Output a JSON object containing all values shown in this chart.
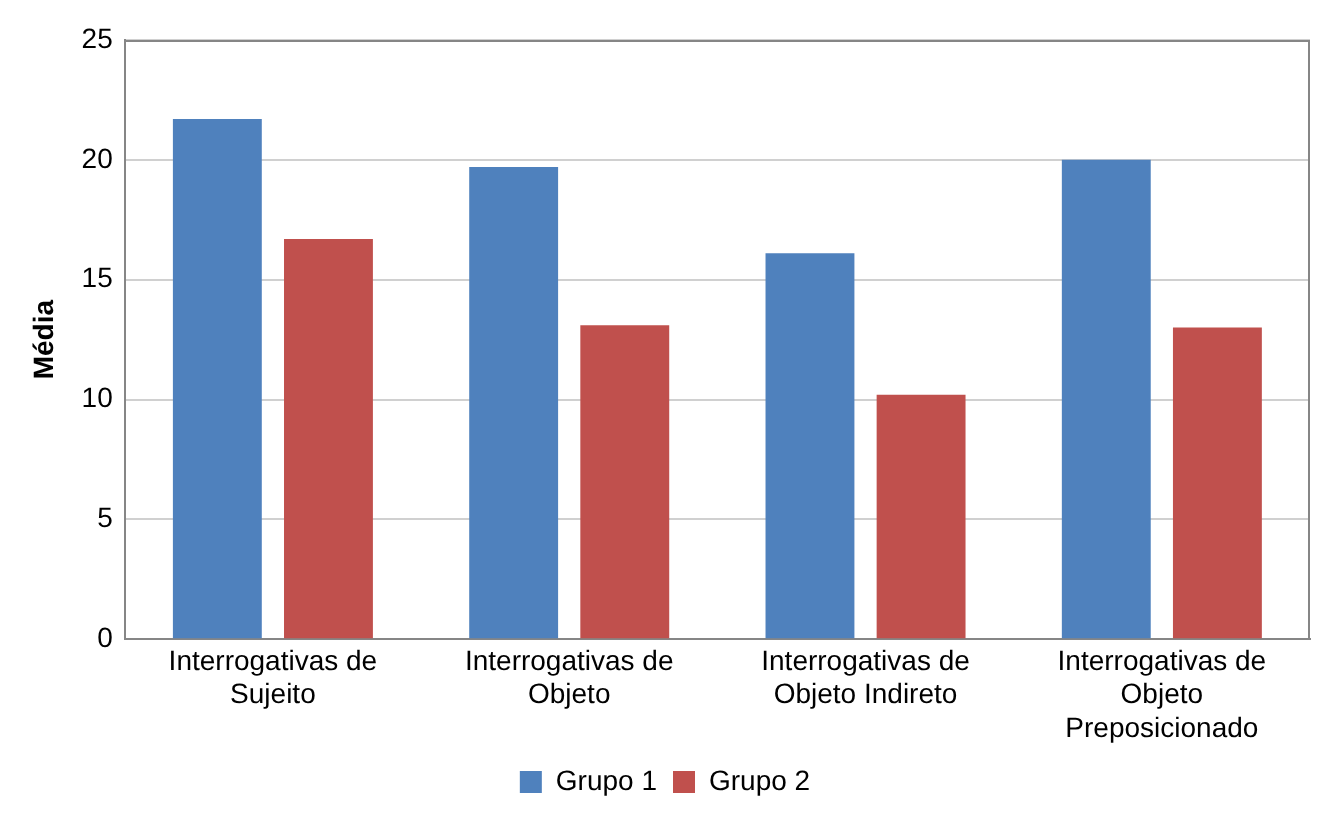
{
  "chart_data": {
    "type": "bar",
    "ylabel": "Média",
    "categories": [
      "Interrogativas de Sujeito",
      "Interrogativas de Objeto",
      "Interrogativas de Objeto Indireto",
      "Interrogativas de Objeto Preposicionado"
    ],
    "series": [
      {
        "name": "Grupo 1",
        "color": "#4f81bd",
        "values": [
          21.7,
          19.7,
          16.1,
          20.0
        ]
      },
      {
        "name": "Grupo 2",
        "color": "#c0504d",
        "values": [
          16.7,
          13.1,
          10.2,
          13.0
        ]
      }
    ],
    "ylim": [
      0,
      25
    ],
    "yticks": [
      0,
      5,
      10,
      15,
      20,
      25
    ],
    "grid": "y",
    "legend": "bottom"
  }
}
